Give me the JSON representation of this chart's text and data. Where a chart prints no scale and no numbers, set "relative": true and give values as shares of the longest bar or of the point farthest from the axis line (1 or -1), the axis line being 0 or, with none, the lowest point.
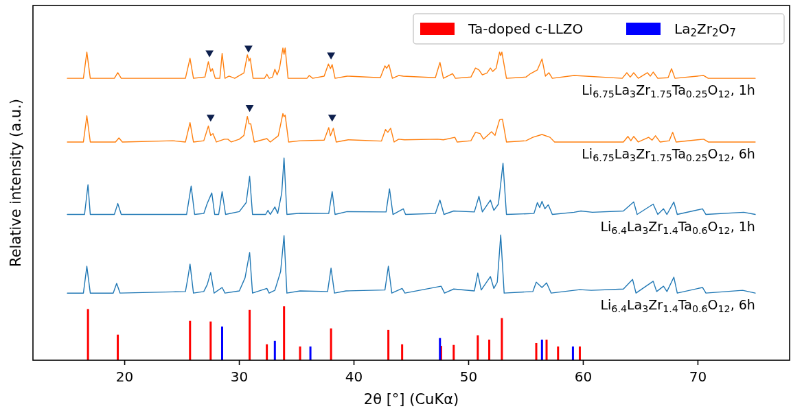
{
  "chart_data": {
    "type": "line",
    "xlabel": "2θ [°] (CuKα)",
    "ylabel": "Relative intensity (a.u.)",
    "relative": true,
    "xlim": [
      12,
      78
    ],
    "xticks": [
      20,
      30,
      40,
      50,
      60,
      70
    ],
    "legend": "top right",
    "series": [
      {
        "name": "Li$_{6.75}$La$_{3}$Zr$_{1.75}$Ta$_{0.25}$O$_{12}$, 1h",
        "color": "#ff7f0e",
        "x": [
          15,
          16.4,
          16.7,
          17.0,
          19.1,
          19.4,
          19.7,
          25.3,
          25.7,
          26.0,
          27.0,
          27.3,
          27.5,
          27.65,
          27.9,
          28.3,
          28.5,
          28.75,
          29.1,
          29.6,
          30.0,
          30.4,
          30.7,
          30.85,
          30.95,
          31.2,
          32.2,
          32.4,
          32.6,
          32.9,
          33.1,
          33.3,
          33.5,
          33.8,
          33.9,
          34.0,
          34.25,
          35.9,
          36.1,
          36.4,
          37.4,
          37.77,
          37.95,
          38.1,
          38.35,
          39.4,
          42.3,
          42.7,
          42.85,
          43.05,
          43.35,
          43.9,
          44.3,
          47.1,
          47.5,
          47.8,
          48.6,
          48.85,
          50.2,
          50.6,
          50.9,
          51.2,
          51.6,
          51.9,
          52.1,
          52.4,
          52.7,
          52.8,
          52.9,
          53.3,
          55.0,
          55.4,
          56.0,
          56.4,
          56.7,
          57.0,
          57.3,
          59.2,
          63.4,
          63.8,
          64.1,
          64.4,
          64.8,
          65.6,
          65.85,
          66.1,
          66.5,
          67.4,
          67.7,
          68.0,
          70.5,
          70.9,
          75.0
        ],
        "values": [
          0.903,
          0.903,
          0.987,
          0.903,
          0.903,
          0.921,
          0.903,
          0.903,
          0.967,
          0.903,
          0.907,
          0.956,
          0.925,
          0.934,
          0.903,
          0.903,
          0.983,
          0.903,
          0.91,
          0.903,
          0.912,
          0.92,
          0.978,
          0.958,
          0.967,
          0.903,
          0.903,
          0.916,
          0.903,
          0.907,
          0.932,
          0.914,
          0.934,
          1.0,
          0.98,
          1.0,
          0.903,
          0.903,
          0.912,
          0.903,
          0.91,
          0.949,
          0.934,
          0.947,
          0.903,
          0.91,
          0.905,
          0.943,
          0.935,
          0.947,
          0.903,
          0.912,
          0.91,
          0.905,
          0.954,
          0.903,
          0.918,
          0.903,
          0.907,
          0.936,
          0.93,
          0.914,
          0.92,
          0.936,
          0.925,
          0.935,
          0.987,
          0.975,
          0.987,
          0.903,
          0.907,
          0.918,
          0.93,
          0.965,
          0.91,
          0.921,
          0.903,
          0.912,
          0.903,
          0.921,
          0.907,
          0.921,
          0.903,
          0.921,
          0.91,
          0.923,
          0.903,
          0.905,
          0.934,
          0.903,
          0.912,
          0.903,
          0.903
        ]
      },
      {
        "name": "Li$_{6.75}$La$_{3}$Zr$_{1.75}$Ta$_{0.25}$O$_{12}$, 6h",
        "color": "#ff7f0e",
        "x": [
          15,
          16.4,
          16.7,
          17.0,
          19.2,
          19.5,
          19.8,
          24.2,
          25.3,
          25.7,
          26.0,
          26.9,
          27.3,
          27.5,
          27.7,
          28.0,
          28.7,
          29.0,
          29.3,
          30.0,
          30.4,
          30.7,
          30.85,
          31.0,
          31.3,
          32.4,
          32.7,
          33.4,
          33.8,
          33.9,
          34.0,
          34.3,
          35.3,
          37.4,
          37.8,
          37.95,
          38.2,
          38.45,
          39.5,
          42.4,
          42.75,
          42.95,
          43.2,
          43.5,
          43.9,
          44.4,
          47.3,
          47.8,
          48.8,
          49.0,
          50.2,
          50.6,
          51.0,
          51.3,
          52.0,
          52.3,
          52.7,
          52.95,
          53.3,
          55.0,
          55.6,
          56.4,
          57.1,
          57.5,
          63.5,
          63.9,
          64.15,
          64.4,
          64.8,
          65.7,
          66.0,
          66.3,
          66.7,
          67.5,
          67.8,
          68.1,
          70.5,
          70.9,
          75.0
        ],
        "values": [
          0.699,
          0.699,
          0.783,
          0.699,
          0.699,
          0.712,
          0.699,
          0.703,
          0.699,
          0.761,
          0.699,
          0.703,
          0.75,
          0.72,
          0.726,
          0.699,
          0.708,
          0.708,
          0.699,
          0.708,
          0.72,
          0.781,
          0.757,
          0.757,
          0.699,
          0.71,
          0.699,
          0.719,
          0.79,
          0.78,
          0.785,
          0.699,
          0.703,
          0.705,
          0.745,
          0.719,
          0.743,
          0.699,
          0.706,
          0.702,
          0.739,
          0.73,
          0.743,
          0.699,
          0.708,
          0.706,
          0.708,
          0.706,
          0.714,
          0.699,
          0.703,
          0.73,
          0.726,
          0.708,
          0.732,
          0.72,
          0.77,
          0.772,
          0.699,
          0.703,
          0.714,
          0.723,
          0.714,
          0.699,
          0.699,
          0.717,
          0.703,
          0.717,
          0.699,
          0.714,
          0.705,
          0.719,
          0.699,
          0.703,
          0.73,
          0.699,
          0.708,
          0.699,
          0.699
        ]
      },
      {
        "name": "Li$_{6.4}$La$_{3}$Zr$_{1.4}$Ta$_{0.6}$O$_{12}$, 1h",
        "color": "#1f77b4",
        "x": [
          15,
          16.5,
          16.8,
          17.0,
          19.1,
          19.4,
          19.7,
          25.4,
          25.8,
          26.1,
          26.9,
          27.2,
          27.6,
          27.85,
          28.2,
          28.5,
          28.8,
          30.0,
          30.6,
          30.9,
          31.15,
          32.3,
          32.5,
          32.7,
          33.1,
          33.35,
          33.7,
          33.9,
          34.15,
          35.3,
          37.8,
          38.1,
          38.35,
          39.4,
          42.8,
          43.1,
          43.4,
          44.3,
          44.5,
          47.1,
          47.5,
          47.85,
          48.7,
          50.5,
          50.9,
          51.2,
          51.9,
          52.2,
          52.6,
          53.0,
          53.3,
          55.7,
          56.0,
          56.2,
          56.4,
          56.65,
          56.95,
          57.3,
          59.2,
          59.8,
          60.8,
          63.5,
          64.4,
          64.7,
          66.1,
          66.5,
          67.0,
          67.3,
          67.9,
          68.2,
          70.4,
          70.7,
          74.0,
          75.0
        ],
        "values": [
          0.467,
          0.467,
          0.562,
          0.467,
          0.467,
          0.502,
          0.467,
          0.467,
          0.558,
          0.467,
          0.47,
          0.502,
          0.536,
          0.467,
          0.467,
          0.54,
          0.467,
          0.476,
          0.505,
          0.589,
          0.467,
          0.467,
          0.48,
          0.467,
          0.491,
          0.47,
          0.536,
          0.648,
          0.467,
          0.471,
          0.47,
          0.54,
          0.467,
          0.476,
          0.475,
          0.549,
          0.467,
          0.485,
          0.467,
          0.47,
          0.513,
          0.467,
          0.478,
          0.475,
          0.525,
          0.475,
          0.513,
          0.48,
          0.5,
          0.631,
          0.467,
          0.47,
          0.505,
          0.489,
          0.509,
          0.485,
          0.498,
          0.467,
          0.474,
          0.478,
          0.474,
          0.478,
          0.507,
          0.467,
          0.5,
          0.467,
          0.485,
          0.467,
          0.507,
          0.467,
          0.485,
          0.467,
          0.474,
          0.467
        ]
      },
      {
        "name": "Li$_{6.4}$La$_{3}$Zr$_{1.4}$Ta$_{0.6}$O$_{12}$, 6h",
        "color": "#1f77b4",
        "x": [
          15,
          16.4,
          16.7,
          17.0,
          19.0,
          19.3,
          19.6,
          24.2,
          25.3,
          25.5,
          25.7,
          26.0,
          26.9,
          27.2,
          27.5,
          27.8,
          28.5,
          28.75,
          30.0,
          30.5,
          30.9,
          31.15,
          32.4,
          32.6,
          33.1,
          33.6,
          33.9,
          34.15,
          35.3,
          37.7,
          38.0,
          38.3,
          39.3,
          42.7,
          43.0,
          43.3,
          44.2,
          44.45,
          47.6,
          47.9,
          48.7,
          50.5,
          50.8,
          51.1,
          51.9,
          52.2,
          52.5,
          52.8,
          53.1,
          55.6,
          55.9,
          56.4,
          56.8,
          57.2,
          59.7,
          60.7,
          63.5,
          64.3,
          64.6,
          66.1,
          66.4,
          67.0,
          67.3,
          67.9,
          68.2,
          70.4,
          70.7,
          73.9,
          75.0
        ],
        "values": [
          0.215,
          0.215,
          0.301,
          0.215,
          0.215,
          0.246,
          0.215,
          0.219,
          0.22,
          0.261,
          0.308,
          0.215,
          0.22,
          0.242,
          0.281,
          0.215,
          0.233,
          0.215,
          0.222,
          0.264,
          0.345,
          0.215,
          0.23,
          0.215,
          0.224,
          0.284,
          0.399,
          0.215,
          0.222,
          0.22,
          0.295,
          0.215,
          0.222,
          0.225,
          0.301,
          0.215,
          0.23,
          0.215,
          0.237,
          0.215,
          0.228,
          0.222,
          0.279,
          0.225,
          0.268,
          0.23,
          0.25,
          0.401,
          0.215,
          0.22,
          0.25,
          0.233,
          0.248,
          0.215,
          0.226,
          0.224,
          0.228,
          0.259,
          0.215,
          0.253,
          0.22,
          0.237,
          0.22,
          0.266,
          0.215,
          0.233,
          0.215,
          0.224,
          0.215
        ]
      },
      {
        "type": "bar",
        "name": "Ta-doped c-LLZO",
        "color": "#ff0000",
        "x": [
          16.8,
          19.4,
          25.7,
          27.5,
          30.9,
          32.4,
          33.9,
          35.3,
          38.0,
          43.0,
          44.2,
          47.6,
          48.7,
          50.8,
          51.8,
          52.9,
          55.9,
          56.8,
          57.8,
          59.7
        ],
        "values": [
          0.164,
          0.082,
          0.126,
          0.124,
          0.161,
          0.051,
          0.173,
          0.044,
          0.102,
          0.097,
          0.051,
          0.046,
          0.049,
          0.08,
          0.066,
          0.135,
          0.055,
          0.066,
          0.044,
          0.044
        ]
      },
      {
        "type": "bar",
        "name": "La$_{2}$Zr$_{2}$O$_{7}$",
        "color": "#0000ff",
        "x": [
          28.5,
          33.1,
          36.2,
          47.5,
          56.4,
          59.1
        ],
        "values": [
          0.108,
          0.062,
          0.044,
          0.071,
          0.066,
          0.044
        ]
      },
      {
        "type": "scatter",
        "color": "#0d1f4d",
        "marker": "triangle",
        "x": [
          27.4,
          30.8,
          38.0,
          27.5,
          30.9,
          38.1
        ],
        "values": [
          0.985,
          1.0,
          0.978,
          0.779,
          0.81,
          0.779
        ]
      }
    ]
  }
}
